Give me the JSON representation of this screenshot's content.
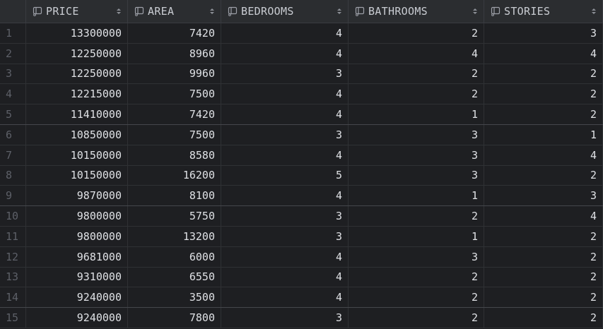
{
  "columns": [
    {
      "name": "PRICE",
      "icon": "column-icon"
    },
    {
      "name": "AREA",
      "icon": "column-icon"
    },
    {
      "name": "BEDROOMS",
      "icon": "column-icon"
    },
    {
      "name": "BATHROOMS",
      "icon": "column-icon"
    },
    {
      "name": "STORIES",
      "icon": "column-icon"
    }
  ],
  "rows": [
    {
      "num": "1",
      "cells": [
        "13300000",
        "7420",
        "4",
        "2",
        "3"
      ]
    },
    {
      "num": "2",
      "cells": [
        "12250000",
        "8960",
        "4",
        "4",
        "4"
      ]
    },
    {
      "num": "3",
      "cells": [
        "12250000",
        "9960",
        "3",
        "2",
        "2"
      ]
    },
    {
      "num": "4",
      "cells": [
        "12215000",
        "7500",
        "4",
        "2",
        "2"
      ]
    },
    {
      "num": "5",
      "cells": [
        "11410000",
        "7420",
        "4",
        "1",
        "2"
      ]
    },
    {
      "num": "6",
      "cells": [
        "10850000",
        "7500",
        "3",
        "3",
        "1"
      ]
    },
    {
      "num": "7",
      "cells": [
        "10150000",
        "8580",
        "4",
        "3",
        "4"
      ]
    },
    {
      "num": "8",
      "cells": [
        "10150000",
        "16200",
        "5",
        "3",
        "2"
      ]
    },
    {
      "num": "9",
      "cells": [
        "9870000",
        "8100",
        "4",
        "1",
        "3"
      ]
    },
    {
      "num": "10",
      "cells": [
        "9800000",
        "5750",
        "3",
        "2",
        "4"
      ]
    },
    {
      "num": "11",
      "cells": [
        "9800000",
        "13200",
        "3",
        "1",
        "2"
      ]
    },
    {
      "num": "12",
      "cells": [
        "9681000",
        "6000",
        "4",
        "3",
        "2"
      ]
    },
    {
      "num": "13",
      "cells": [
        "9310000",
        "6550",
        "4",
        "2",
        "2"
      ]
    },
    {
      "num": "14",
      "cells": [
        "9240000",
        "3500",
        "4",
        "2",
        "2"
      ]
    },
    {
      "num": "15",
      "cells": [
        "9240000",
        "7800",
        "3",
        "2",
        "2"
      ]
    }
  ],
  "colors": {
    "background": "#1e1f22",
    "header_bg": "#2b2d30",
    "text": "#dfe1e5",
    "row_number": "#5d6068",
    "grid_line": "#2f3134"
  }
}
